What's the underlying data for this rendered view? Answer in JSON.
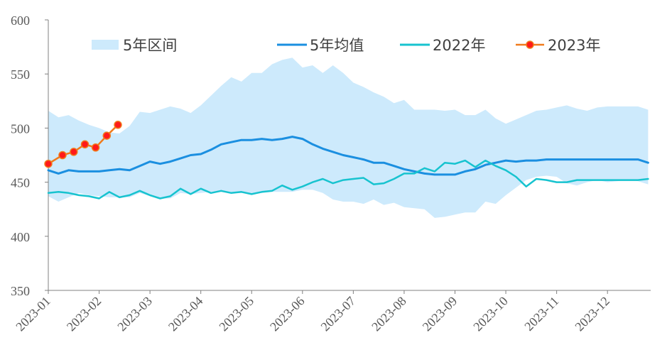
{
  "chart_data": {
    "type": "line",
    "title": "",
    "xlabel": "",
    "ylabel": "",
    "ylim": [
      350,
      600
    ],
    "yticks": [
      "350",
      "400",
      "450",
      "500",
      "550",
      "600"
    ],
    "xticks": [
      "2023-01",
      "2023-02",
      "2023-03",
      "2023-04",
      "2023-05",
      "2023-06",
      "2023-07",
      "2023-08",
      "2023-09",
      "2023-10",
      "2023-11",
      "2023-12"
    ],
    "legend_position": "top",
    "grid": false,
    "colors": {
      "band": "#cdeafc",
      "avg": "#1b8fe0",
      "y2022": "#17c3cf",
      "y2023_line": "#f07b1c",
      "y2023_marker_fill": "#ff1a1a",
      "axis": "#808080"
    },
    "band": {
      "name": "5年区间",
      "x": [
        1.0,
        1.2,
        1.4,
        1.6,
        1.8,
        2.0,
        2.2,
        2.4,
        2.6,
        2.8,
        3.0,
        3.2,
        3.4,
        3.6,
        3.8,
        4.0,
        4.2,
        4.4,
        4.6,
        4.8,
        5.0,
        5.2,
        5.4,
        5.6,
        5.8,
        6.0,
        6.2,
        6.4,
        6.6,
        6.8,
        7.0,
        7.2,
        7.4,
        7.6,
        7.8,
        8.0,
        8.2,
        8.4,
        8.6,
        8.8,
        9.0,
        9.2,
        9.4,
        9.6,
        9.8,
        10.0,
        10.2,
        10.4,
        10.6,
        10.8,
        11.0,
        11.2,
        11.4,
        11.6,
        11.8,
        12.0,
        12.2,
        12.4,
        12.6,
        12.8
      ],
      "upper": [
        516,
        510,
        512,
        507,
        503,
        500,
        496,
        495,
        502,
        515,
        514,
        517,
        520,
        518,
        514,
        521,
        530,
        539,
        547,
        543,
        551,
        551,
        559,
        563,
        565,
        556,
        558,
        551,
        558,
        551,
        542,
        538,
        533,
        529,
        523,
        526,
        517,
        517,
        517,
        516,
        517,
        512,
        512,
        517,
        509,
        504,
        508,
        512,
        516,
        517,
        519,
        521,
        518,
        516,
        519,
        520,
        520,
        520,
        520,
        517
      ],
      "lower": [
        437,
        432,
        436,
        440,
        438,
        437,
        436,
        436,
        436,
        440,
        437,
        435,
        435,
        440,
        439,
        440,
        441,
        441,
        440,
        440,
        439,
        440,
        441,
        441,
        441,
        443,
        443,
        440,
        434,
        432,
        432,
        430,
        434,
        429,
        431,
        427,
        426,
        425,
        417,
        418,
        420,
        422,
        422,
        432,
        430,
        438,
        445,
        452,
        455,
        456,
        455,
        449,
        447,
        450,
        452,
        450,
        451,
        452,
        451,
        448
      ]
    },
    "series": [
      {
        "name": "5年均值",
        "x": [
          1.0,
          1.2,
          1.4,
          1.6,
          1.8,
          2.0,
          2.2,
          2.4,
          2.6,
          2.8,
          3.0,
          3.2,
          3.4,
          3.6,
          3.8,
          4.0,
          4.2,
          4.4,
          4.6,
          4.8,
          5.0,
          5.2,
          5.4,
          5.6,
          5.8,
          6.0,
          6.2,
          6.4,
          6.6,
          6.8,
          7.0,
          7.2,
          7.4,
          7.6,
          7.8,
          8.0,
          8.2,
          8.4,
          8.6,
          8.8,
          9.0,
          9.2,
          9.4,
          9.6,
          9.8,
          10.0,
          10.2,
          10.4,
          10.6,
          10.8,
          11.0,
          11.2,
          11.4,
          11.6,
          11.8,
          12.0,
          12.2,
          12.4,
          12.6,
          12.8
        ],
        "values": [
          461,
          458,
          461,
          460,
          460,
          460,
          461,
          462,
          461,
          465,
          469,
          467,
          469,
          472,
          475,
          476,
          480,
          485,
          487,
          489,
          489,
          490,
          489,
          490,
          492,
          490,
          485,
          481,
          478,
          475,
          473,
          471,
          468,
          468,
          465,
          462,
          460,
          458,
          457,
          457,
          457,
          460,
          462,
          466,
          468,
          470,
          469,
          470,
          470,
          471,
          471,
          471,
          471,
          471,
          471,
          471,
          471,
          471,
          471,
          468
        ]
      },
      {
        "name": "2022年",
        "x": [
          1.0,
          1.2,
          1.4,
          1.6,
          1.8,
          2.0,
          2.2,
          2.4,
          2.6,
          2.8,
          3.0,
          3.2,
          3.4,
          3.6,
          3.8,
          4.0,
          4.2,
          4.4,
          4.6,
          4.8,
          5.0,
          5.2,
          5.4,
          5.6,
          5.8,
          6.0,
          6.2,
          6.4,
          6.6,
          6.8,
          7.0,
          7.2,
          7.4,
          7.6,
          7.8,
          8.0,
          8.2,
          8.4,
          8.6,
          8.8,
          9.0,
          9.2,
          9.4,
          9.6,
          9.8,
          10.0,
          10.2,
          10.4,
          10.6,
          10.8,
          11.0,
          11.2,
          11.4,
          11.6,
          11.8,
          12.0,
          12.2,
          12.4,
          12.6,
          12.8
        ],
        "values": [
          440,
          441,
          440,
          438,
          437,
          435,
          441,
          436,
          438,
          442,
          438,
          435,
          437,
          444,
          439,
          444,
          440,
          442,
          440,
          441,
          439,
          441,
          442,
          447,
          443,
          446,
          450,
          453,
          449,
          452,
          453,
          454,
          448,
          449,
          453,
          458,
          458,
          463,
          460,
          468,
          467,
          470,
          464,
          470,
          465,
          461,
          455,
          446,
          453,
          452,
          450,
          450,
          452,
          452,
          452,
          452,
          452,
          452,
          452,
          453
        ]
      },
      {
        "name": "2023年",
        "x": [
          1.0,
          1.28,
          1.5,
          1.72,
          1.93,
          2.15,
          2.37
        ],
        "values": [
          467,
          475,
          478,
          485,
          482,
          493,
          503
        ]
      }
    ]
  }
}
